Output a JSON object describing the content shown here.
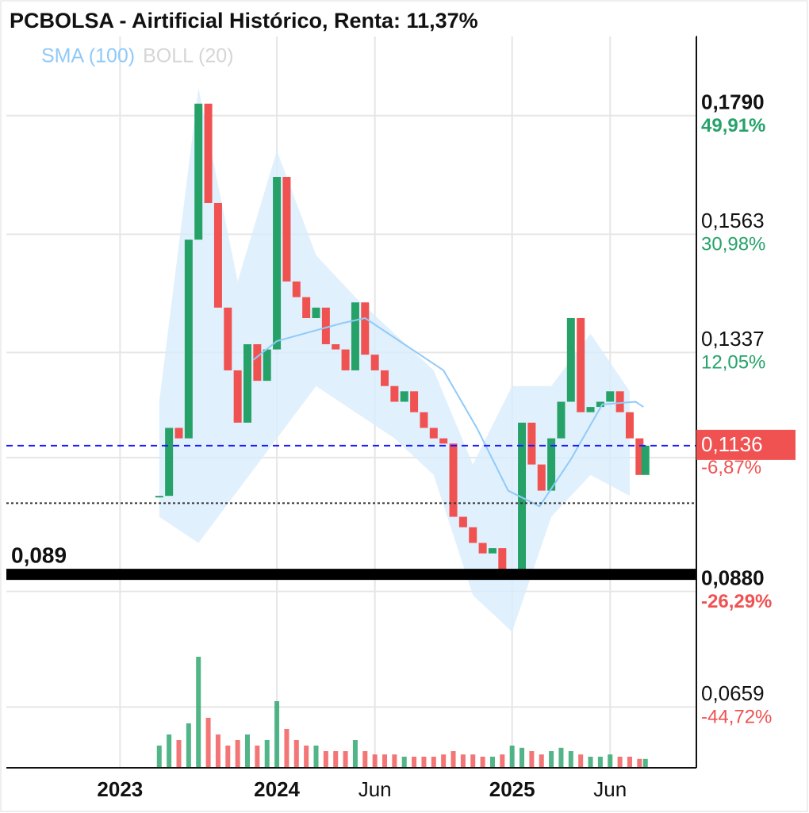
{
  "chart_data": {
    "type": "candlestick",
    "title": "PCBOLSA - Airtificial Histórico, Renta: 11,37%",
    "xlim": [
      -13.8,
      21.4
    ],
    "ylim": [
      0.052,
      0.192
    ],
    "xticks": [
      {
        "value": -8,
        "label": "2023"
      },
      {
        "value": 0,
        "label": "2024"
      },
      {
        "value": 5,
        "label": "Jun"
      },
      {
        "value": 12,
        "label": "2025"
      },
      {
        "value": 17,
        "label": "Jun"
      }
    ],
    "yticks": [
      {
        "value": 0.179,
        "label": "0,1790"
      },
      {
        "value": 0.1563,
        "label": "0,1563"
      },
      {
        "value": 0.1337,
        "label": "0,1337"
      },
      {
        "value": 0.1136,
        "label": "0,1136"
      },
      {
        "value": 0.088,
        "label": "0,0880"
      },
      {
        "value": 0.0659,
        "label": "0,0659"
      }
    ],
    "ytick_changes": [
      "49,91%",
      "30,98%",
      "12,05%",
      "-6,87%",
      "-26,29%",
      "-44,72%"
    ],
    "grid": true,
    "price": {
      "up_color": "#26a269",
      "down_color": "#f05252",
      "x": [
        -6,
        -5.5,
        -5,
        -4.5,
        -4,
        -3.5,
        -3,
        -2.5,
        -2,
        -1.5,
        -1,
        -0.5,
        0,
        0.5,
        1,
        1.5,
        2,
        2.5,
        3,
        3.5,
        4,
        4.5,
        5,
        5.5,
        6,
        6.5,
        7,
        7.5,
        8,
        8.5,
        9,
        9.5,
        10,
        10.5,
        11,
        11.5,
        12,
        12.5,
        13,
        13.5,
        14,
        14.5,
        15,
        15.5,
        16,
        16.5,
        17,
        17.5,
        18,
        18.5,
        18.8
      ],
      "values": [
        0.104,
        0.117,
        0.115,
        0.153,
        0.179,
        0.16,
        0.14,
        0.128,
        0.118,
        0.133,
        0.126,
        0.132,
        0.165,
        0.145,
        0.142,
        0.138,
        0.14,
        0.133,
        0.132,
        0.128,
        0.141,
        0.131,
        0.128,
        0.125,
        0.122,
        0.124,
        0.12,
        0.117,
        0.115,
        0.114,
        0.1,
        0.098,
        0.095,
        0.093,
        0.094,
        0.088,
        0.09,
        0.118,
        0.11,
        0.105,
        0.115,
        0.122,
        0.138,
        0.12,
        0.121,
        0.122,
        0.124,
        0.12,
        0.115,
        0.108,
        0.1136
      ],
      "volume": [
        20,
        30,
        25,
        40,
        100,
        45,
        30,
        20,
        25,
        30,
        20,
        25,
        60,
        35,
        25,
        20,
        20,
        15,
        15,
        15,
        25,
        15,
        12,
        12,
        12,
        10,
        10,
        10,
        10,
        12,
        15,
        12,
        12,
        10,
        10,
        12,
        20,
        18,
        15,
        12,
        15,
        18,
        15,
        12,
        10,
        10,
        12,
        10,
        10,
        8,
        8
      ]
    },
    "series": [
      {
        "name": "SMA (100)",
        "color": "#90caf9",
        "x": [
          -1.2,
          0,
          3.3,
          4.5,
          6.1,
          8.5,
          10.2,
          11.8,
          13.4,
          15,
          16.6,
          18.3,
          18.7
        ],
        "values": [
          0.13,
          0.1336,
          0.137,
          0.138,
          0.134,
          0.128,
          0.117,
          0.105,
          0.102,
          0.111,
          0.1215,
          0.122,
          0.121
        ]
      },
      {
        "name": "BOLL (20)",
        "color": "#d6d6d6",
        "band_color": "#d8ecfb",
        "x": [
          -6,
          -4,
          -2,
          0,
          2,
          4,
          6,
          8,
          10,
          12,
          14,
          16,
          18
        ],
        "upper": [
          0.122,
          0.182,
          0.145,
          0.17,
          0.15,
          0.142,
          0.135,
          0.128,
          0.11,
          0.125,
          0.125,
          0.135,
          0.124
        ],
        "lower": [
          0.1,
          0.095,
          0.105,
          0.115,
          0.125,
          0.12,
          0.115,
          0.108,
          0.085,
          0.078,
          0.1,
          0.108,
          0.104
        ]
      }
    ],
    "current_price": {
      "value": 0.1136,
      "color": "#1a1aff",
      "box_color": "#f05252"
    },
    "reference_line": 0.1026,
    "support": {
      "value": 0.089,
      "label": "0,089"
    }
  }
}
